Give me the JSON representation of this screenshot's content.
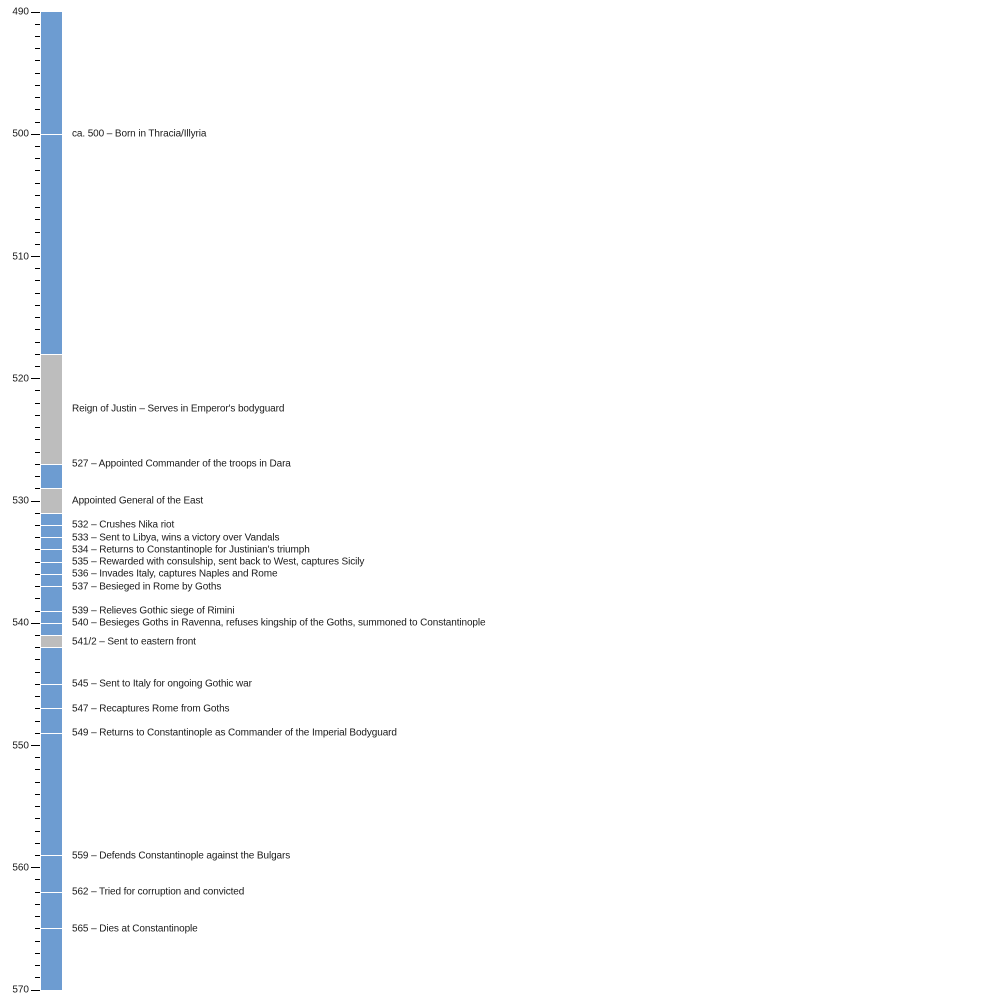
{
  "chart_data": {
    "type": "bar",
    "subtype": "vertical-timeline",
    "title": "",
    "xlabel": "",
    "ylabel": "",
    "axis": {
      "min": 490,
      "max": 570,
      "major_tick_step": 10,
      "minor_tick_step": 1,
      "tick_labels": [
        "490",
        "500",
        "510",
        "520",
        "530",
        "540",
        "550",
        "560",
        "570"
      ],
      "side": "left",
      "direction": "top-down"
    },
    "colors": {
      "active_segment": "#6D9CD1",
      "inactive_segment": "#BDBDBD",
      "separator": "#FFFFFF",
      "tick": "#000000",
      "label_text": "#1A1A1A"
    },
    "segments": [
      {
        "start": 490,
        "end": 500,
        "state": "active"
      },
      {
        "start": 500,
        "end": 518,
        "state": "active"
      },
      {
        "start": 518,
        "end": 527,
        "state": "inactive"
      },
      {
        "start": 527,
        "end": 529,
        "state": "active"
      },
      {
        "start": 529,
        "end": 531,
        "state": "inactive"
      },
      {
        "start": 531,
        "end": 532,
        "state": "active"
      },
      {
        "start": 532,
        "end": 533,
        "state": "active"
      },
      {
        "start": 533,
        "end": 534,
        "state": "active"
      },
      {
        "start": 534,
        "end": 535,
        "state": "active"
      },
      {
        "start": 535,
        "end": 536,
        "state": "active"
      },
      {
        "start": 536,
        "end": 537,
        "state": "active"
      },
      {
        "start": 537,
        "end": 539,
        "state": "active"
      },
      {
        "start": 539,
        "end": 540,
        "state": "active"
      },
      {
        "start": 540,
        "end": 541,
        "state": "active"
      },
      {
        "start": 541,
        "end": 542,
        "state": "inactive"
      },
      {
        "start": 542,
        "end": 545,
        "state": "active"
      },
      {
        "start": 545,
        "end": 547,
        "state": "active"
      },
      {
        "start": 547,
        "end": 549,
        "state": "active"
      },
      {
        "start": 549,
        "end": 559,
        "state": "active"
      },
      {
        "start": 559,
        "end": 562,
        "state": "active"
      },
      {
        "start": 562,
        "end": 565,
        "state": "active"
      },
      {
        "start": 565,
        "end": 570,
        "state": "active"
      }
    ],
    "events": [
      {
        "position": 500,
        "text": "ca. 500 – Born in Thracia/Illyria"
      },
      {
        "position": 522.5,
        "text": "Reign of Justin – Serves in Emperor's bodyguard"
      },
      {
        "position": 527,
        "text": "527 – Appointed Commander of the troops in Dara"
      },
      {
        "position": 530,
        "text": "Appointed General of the East"
      },
      {
        "position": 532,
        "text": "532 – Crushes Nika riot"
      },
      {
        "position": 533,
        "text": "533 – Sent to Libya, wins a victory over Vandals"
      },
      {
        "position": 534,
        "text": "534 – Returns to Constantinople for Justinian's triumph"
      },
      {
        "position": 535,
        "text": "535 – Rewarded with consulship, sent back to West, captures Sicily"
      },
      {
        "position": 536,
        "text": "536 – Invades Italy, captures Naples and Rome"
      },
      {
        "position": 537,
        "text": "537 – Besieged in Rome by Goths"
      },
      {
        "position": 539,
        "text": "539 – Relieves Gothic siege of Rimini"
      },
      {
        "position": 540,
        "text": "540 – Besieges Goths in Ravenna, refuses kingship of the Goths, summoned to Constantinople"
      },
      {
        "position": 541.5,
        "text": "541/2 – Sent to eastern front"
      },
      {
        "position": 545,
        "text": "545 – Sent to Italy for ongoing Gothic war"
      },
      {
        "position": 547,
        "text": "547 – Recaptures Rome from Goths"
      },
      {
        "position": 549,
        "text": "549 – Returns to Constantinople as Commander of the Imperial Bodyguard"
      },
      {
        "position": 559,
        "text": "559 – Defends Constantinople against the Bulgars"
      },
      {
        "position": 562,
        "text": "562 – Tried for corruption and convicted"
      },
      {
        "position": 565,
        "text": "565 – Dies at Constantinople"
      }
    ]
  }
}
